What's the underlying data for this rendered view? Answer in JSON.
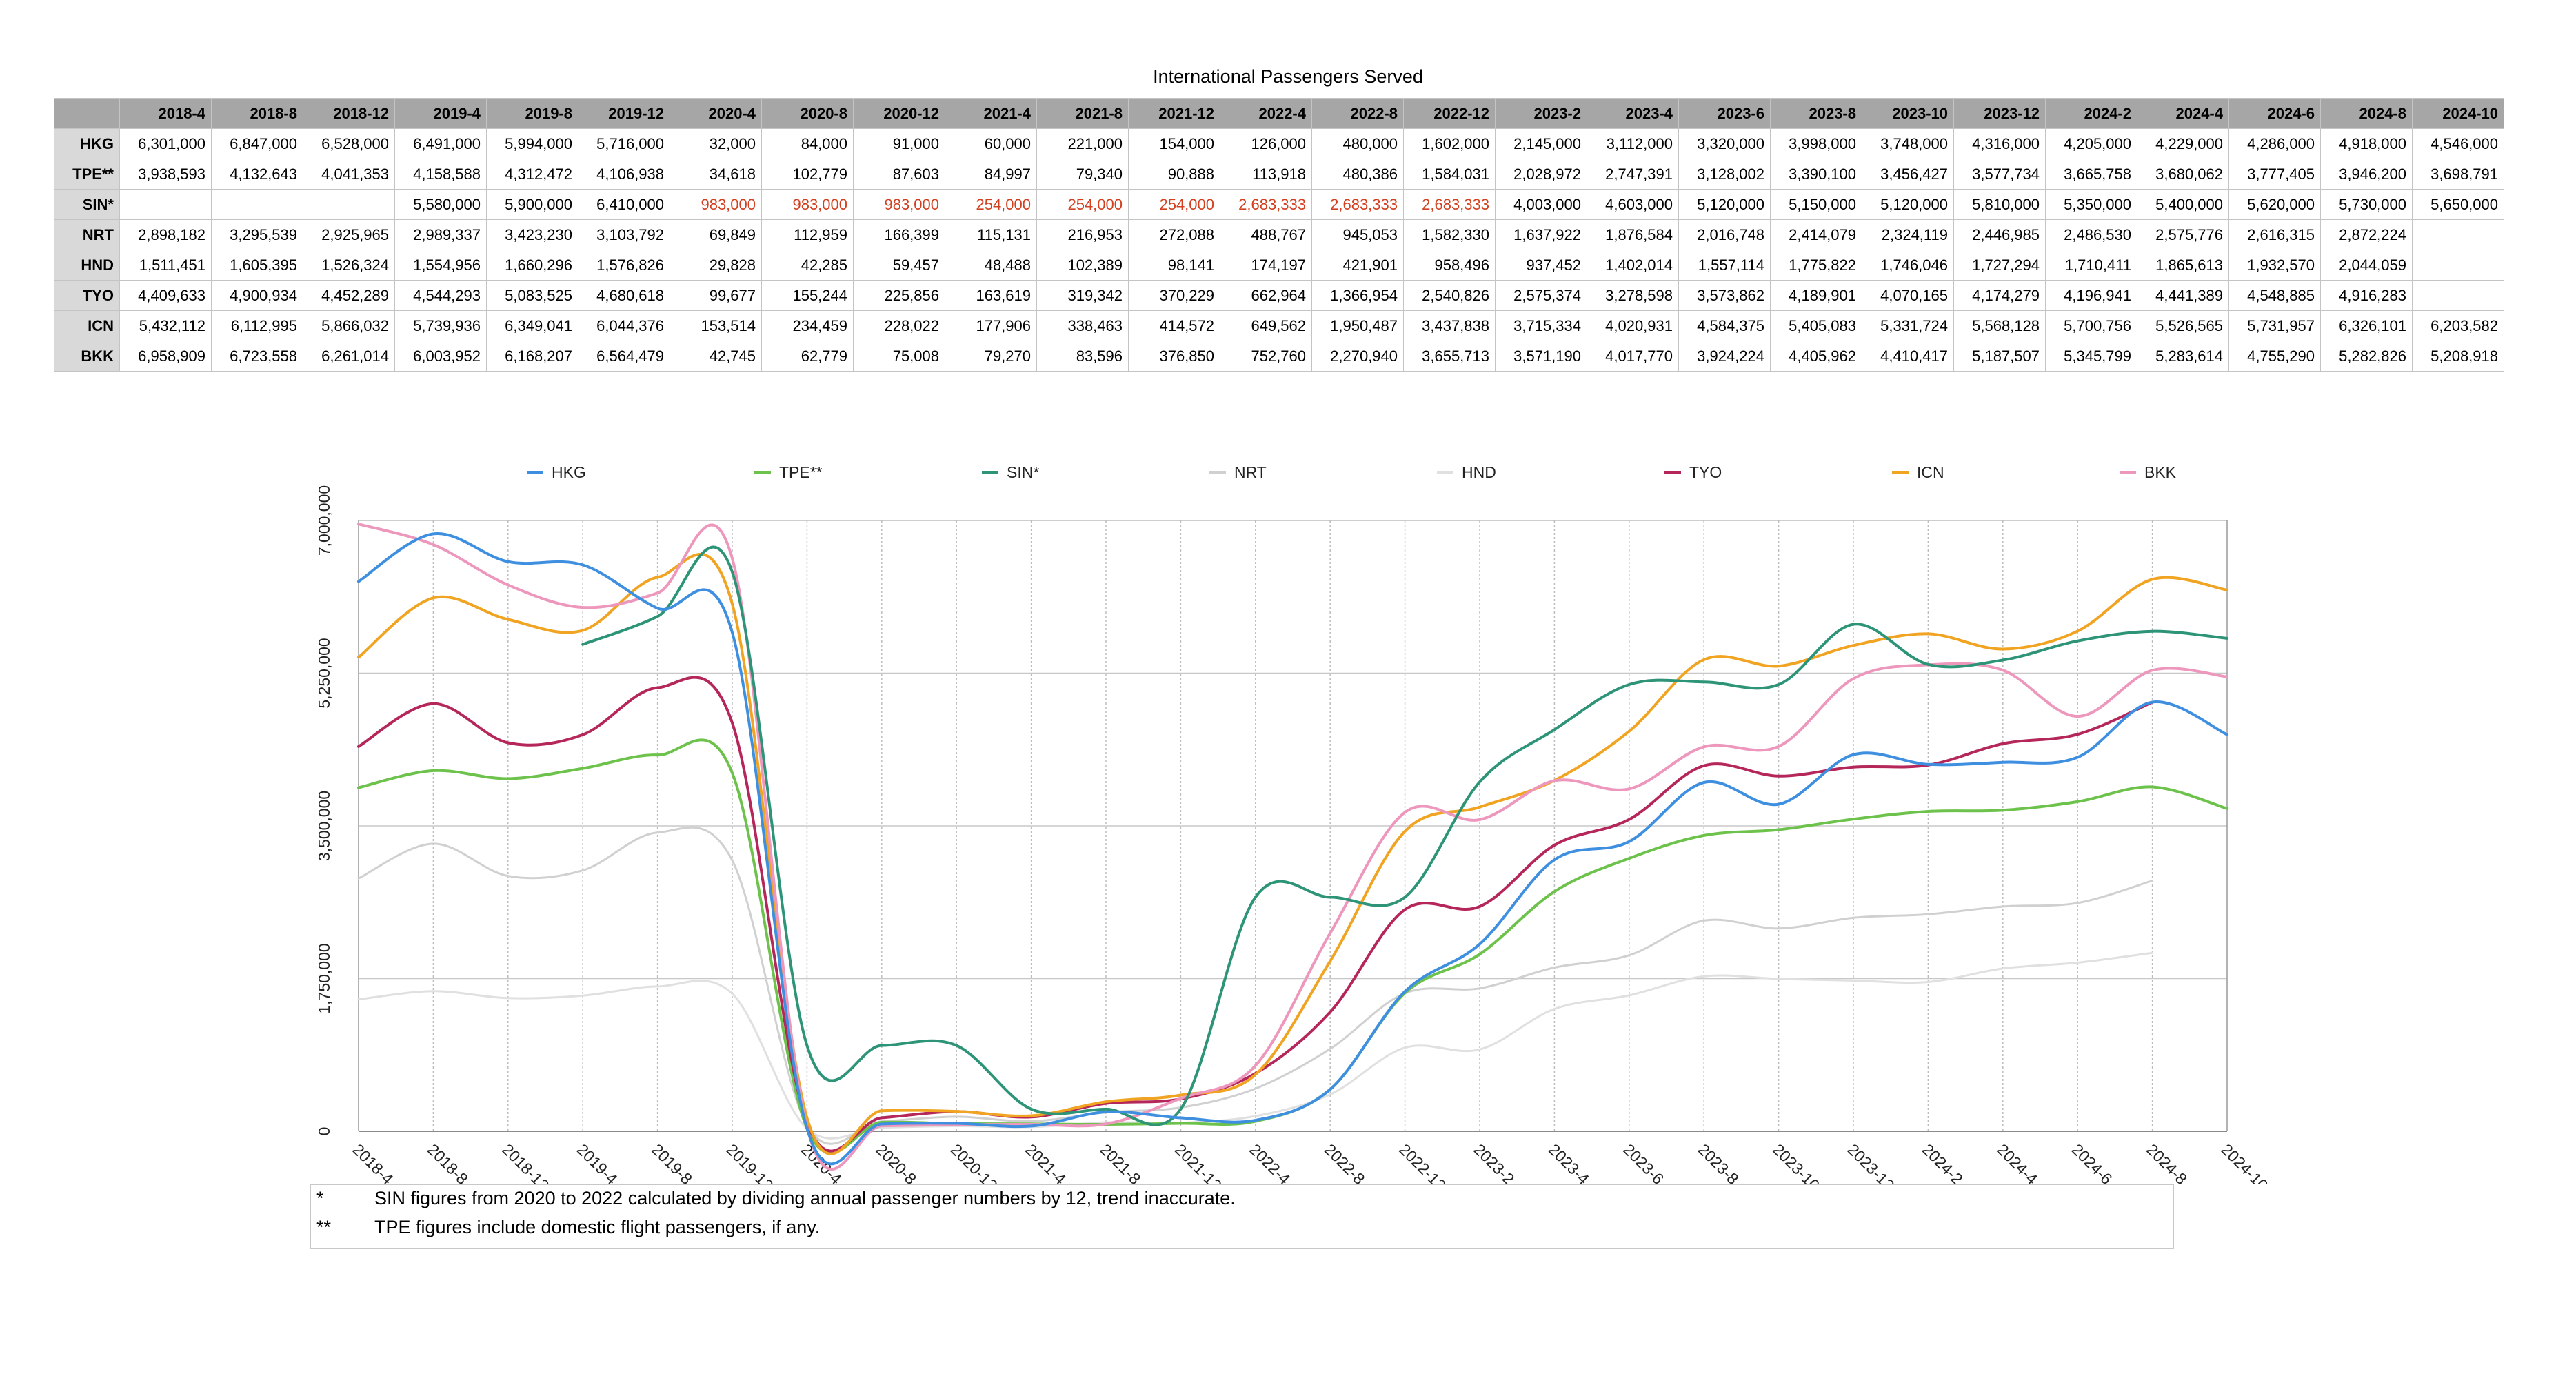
{
  "chart_data": {
    "type": "line",
    "title": "International Passengers Served",
    "xlabel": "",
    "ylabel": "",
    "ylim": [
      0,
      7000000
    ],
    "yticks": [
      "0",
      "1,750,000",
      "3,500,000",
      "5,250,000",
      "7,000,000"
    ],
    "grid": true,
    "legend_position": "top",
    "categories": [
      "2018-4",
      "2018-8",
      "2018-12",
      "2019-4",
      "2019-8",
      "2019-12",
      "2020-4",
      "2020-8",
      "2020-12",
      "2021-4",
      "2021-8",
      "2021-12",
      "2022-4",
      "2022-8",
      "2022-12",
      "2023-2",
      "2023-4",
      "2023-6",
      "2023-8",
      "2023-10",
      "2023-12",
      "2024-2",
      "2024-4",
      "2024-6",
      "2024-8",
      "2024-10"
    ],
    "series": [
      {
        "name": "HKG",
        "color": "#3e8fe0",
        "values": [
          6301000,
          6847000,
          6528000,
          6491000,
          5994000,
          5716000,
          32000,
          84000,
          91000,
          60000,
          221000,
          154000,
          126000,
          480000,
          1602000,
          2145000,
          3112000,
          3320000,
          3998000,
          3748000,
          4316000,
          4205000,
          4229000,
          4286000,
          4918000,
          4546000
        ]
      },
      {
        "name": "TPE**",
        "color": "#6cc24a",
        "values": [
          3938593,
          4132643,
          4041353,
          4158588,
          4312472,
          4106938,
          34618,
          102779,
          87603,
          84997,
          79340,
          90888,
          113918,
          480386,
          1584031,
          2028972,
          2747391,
          3128002,
          3390100,
          3456427,
          3577734,
          3665758,
          3680062,
          3777405,
          3946200,
          3698791
        ]
      },
      {
        "name": "SIN*",
        "color": "#2e9478",
        "values": [
          null,
          null,
          null,
          5580000,
          5900000,
          6410000,
          983000,
          983000,
          983000,
          254000,
          254000,
          254000,
          2683333,
          2683333,
          2683333,
          4003000,
          4603000,
          5120000,
          5150000,
          5120000,
          5810000,
          5350000,
          5400000,
          5620000,
          5730000,
          5650000
        ]
      },
      {
        "name": "NRT",
        "color": "#d0d0d0",
        "values": [
          2898182,
          3295539,
          2925965,
          2989337,
          3423230,
          3103792,
          69849,
          112959,
          166399,
          115131,
          216953,
          272088,
          488767,
          945053,
          1582330,
          1637922,
          1876584,
          2016748,
          2414079,
          2324119,
          2446985,
          2486530,
          2575776,
          2616315,
          2872224,
          null
        ]
      },
      {
        "name": "HND",
        "color": "#e0e0e0",
        "values": [
          1511451,
          1605395,
          1526324,
          1554956,
          1660296,
          1576826,
          29828,
          42285,
          59457,
          48488,
          102389,
          98141,
          174197,
          421901,
          958496,
          937452,
          1402014,
          1557114,
          1775822,
          1746046,
          1727294,
          1710411,
          1865613,
          1932570,
          2044059,
          null
        ]
      },
      {
        "name": "TYO",
        "color": "#b5265a",
        "values": [
          4409633,
          4900934,
          4452289,
          4544293,
          5083525,
          4680618,
          99677,
          155244,
          225856,
          163619,
          319342,
          370229,
          662964,
          1366954,
          2540826,
          2575374,
          3278598,
          3573862,
          4189901,
          4070165,
          4174279,
          4196941,
          4441389,
          4548885,
          4916283,
          null
        ]
      },
      {
        "name": "ICN",
        "color": "#f0a422",
        "values": [
          5432112,
          6112995,
          5866032,
          5739936,
          6349041,
          6044376,
          153514,
          234459,
          228022,
          177906,
          338463,
          414572,
          649562,
          1950487,
          3437838,
          3715334,
          4020931,
          4584375,
          5405083,
          5331724,
          5568128,
          5700756,
          5526565,
          5731957,
          6326101,
          6203582
        ]
      },
      {
        "name": "BKK",
        "color": "#ee97bd",
        "values": [
          6958909,
          6723558,
          6261014,
          6003952,
          6168207,
          6564479,
          42745,
          62779,
          75008,
          79270,
          83596,
          376850,
          752760,
          2270940,
          3655713,
          3571190,
          4017770,
          3924224,
          4405962,
          4410417,
          5187507,
          5345799,
          5283614,
          4755290,
          5282826,
          5208918
        ]
      }
    ],
    "estimated_cells": {
      "series": "SIN*",
      "from_index": 6,
      "to_index": 14
    }
  },
  "table": {
    "corner": "",
    "headers": [
      "2018-4",
      "2018-8",
      "2018-12",
      "2019-4",
      "2019-8",
      "2019-12",
      "2020-4",
      "2020-8",
      "2020-12",
      "2021-4",
      "2021-8",
      "2021-12",
      "2022-4",
      "2022-8",
      "2022-12",
      "2023-2",
      "2023-4",
      "2023-6",
      "2023-8",
      "2023-10",
      "2023-12",
      "2024-2",
      "2024-4",
      "2024-6",
      "2024-8",
      "2024-10"
    ],
    "rows": [
      {
        "label": "HKG",
        "cells": [
          "6,301,000",
          "6,847,000",
          "6,528,000",
          "6,491,000",
          "5,994,000",
          "5,716,000",
          "32,000",
          "84,000",
          "91,000",
          "60,000",
          "221,000",
          "154,000",
          "126,000",
          "480,000",
          "1,602,000",
          "2,145,000",
          "3,112,000",
          "3,320,000",
          "3,998,000",
          "3,748,000",
          "4,316,000",
          "4,205,000",
          "4,229,000",
          "4,286,000",
          "4,918,000",
          "4,546,000"
        ]
      },
      {
        "label": "TPE**",
        "cells": [
          "3,938,593",
          "4,132,643",
          "4,041,353",
          "4,158,588",
          "4,312,472",
          "4,106,938",
          "34,618",
          "102,779",
          "87,603",
          "84,997",
          "79,340",
          "90,888",
          "113,918",
          "480,386",
          "1,584,031",
          "2,028,972",
          "2,747,391",
          "3,128,002",
          "3,390,100",
          "3,456,427",
          "3,577,734",
          "3,665,758",
          "3,680,062",
          "3,777,405",
          "3,946,200",
          "3,698,791"
        ]
      },
      {
        "label": "SIN*",
        "cells": [
          "",
          "",
          "",
          "5,580,000",
          "5,900,000",
          "6,410,000",
          "983,000",
          "983,000",
          "983,000",
          "254,000",
          "254,000",
          "254,000",
          "2,683,333",
          "2,683,333",
          "2,683,333",
          "4,003,000",
          "4,603,000",
          "5,120,000",
          "5,150,000",
          "5,120,000",
          "5,810,000",
          "5,350,000",
          "5,400,000",
          "5,620,000",
          "5,730,000",
          "5,650,000"
        ]
      },
      {
        "label": "NRT",
        "cells": [
          "2,898,182",
          "3,295,539",
          "2,925,965",
          "2,989,337",
          "3,423,230",
          "3,103,792",
          "69,849",
          "112,959",
          "166,399",
          "115,131",
          "216,953",
          "272,088",
          "488,767",
          "945,053",
          "1,582,330",
          "1,637,922",
          "1,876,584",
          "2,016,748",
          "2,414,079",
          "2,324,119",
          "2,446,985",
          "2,486,530",
          "2,575,776",
          "2,616,315",
          "2,872,224",
          ""
        ]
      },
      {
        "label": "HND",
        "cells": [
          "1,511,451",
          "1,605,395",
          "1,526,324",
          "1,554,956",
          "1,660,296",
          "1,576,826",
          "29,828",
          "42,285",
          "59,457",
          "48,488",
          "102,389",
          "98,141",
          "174,197",
          "421,901",
          "958,496",
          "937,452",
          "1,402,014",
          "1,557,114",
          "1,775,822",
          "1,746,046",
          "1,727,294",
          "1,710,411",
          "1,865,613",
          "1,932,570",
          "2,044,059",
          ""
        ]
      },
      {
        "label": "TYO",
        "cells": [
          "4,409,633",
          "4,900,934",
          "4,452,289",
          "4,544,293",
          "5,083,525",
          "4,680,618",
          "99,677",
          "155,244",
          "225,856",
          "163,619",
          "319,342",
          "370,229",
          "662,964",
          "1,366,954",
          "2,540,826",
          "2,575,374",
          "3,278,598",
          "3,573,862",
          "4,189,901",
          "4,070,165",
          "4,174,279",
          "4,196,941",
          "4,441,389",
          "4,548,885",
          "4,916,283",
          ""
        ]
      },
      {
        "label": "ICN",
        "cells": [
          "5,432,112",
          "6,112,995",
          "5,866,032",
          "5,739,936",
          "6,349,041",
          "6,044,376",
          "153,514",
          "234,459",
          "228,022",
          "177,906",
          "338,463",
          "414,572",
          "649,562",
          "1,950,487",
          "3,437,838",
          "3,715,334",
          "4,020,931",
          "4,584,375",
          "5,405,083",
          "5,331,724",
          "5,568,128",
          "5,700,756",
          "5,526,565",
          "5,731,957",
          "6,326,101",
          "6,203,582"
        ]
      },
      {
        "label": "BKK",
        "cells": [
          "6,958,909",
          "6,723,558",
          "6,261,014",
          "6,003,952",
          "6,168,207",
          "6,564,479",
          "42,745",
          "62,779",
          "75,008",
          "79,270",
          "83,596",
          "376,850",
          "752,760",
          "2,270,940",
          "3,655,713",
          "3,571,190",
          "4,017,770",
          "3,924,224",
          "4,405,962",
          "4,410,417",
          "5,187,507",
          "5,345,799",
          "5,283,614",
          "4,755,290",
          "5,282,826",
          "5,208,918"
        ]
      }
    ]
  },
  "notes": [
    {
      "marker": "*",
      "text": "SIN figures from 2020 to 2022 calculated by dividing annual passenger numbers by 12, trend inaccurate."
    },
    {
      "marker": "**",
      "text": "TPE figures include domestic flight passengers, if any."
    }
  ]
}
